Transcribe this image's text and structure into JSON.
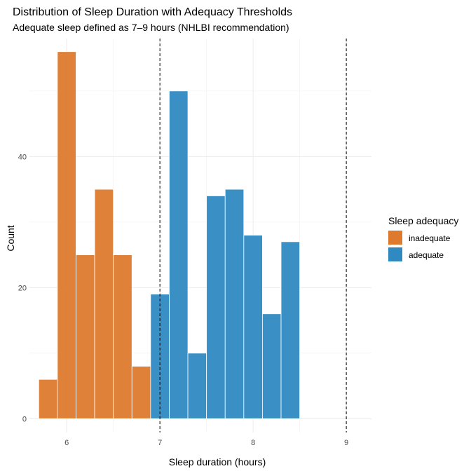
{
  "chart_data": {
    "type": "bar",
    "title": "Distribution of Sleep Duration with Adequacy Thresholds",
    "subtitle": "Adequate sleep defined as 7–9 hours (NHLBI recommendation)",
    "xlabel": "Sleep duration (hours)",
    "ylabel": "Count",
    "xlim": [
      5.6,
      9.27
    ],
    "ylim": [
      -2.1,
      58
    ],
    "x_ticks": [
      6,
      7,
      8,
      9
    ],
    "y_ticks": [
      0,
      20,
      40
    ],
    "grid": true,
    "bin_width": 0.2,
    "reference_lines": [
      7,
      9
    ],
    "legend": {
      "title": "Sleep adequacy",
      "position": "right",
      "entries": [
        {
          "label": "inadequate",
          "color": "#DD7A2D"
        },
        {
          "label": "adequate",
          "color": "#2F8AC2"
        }
      ]
    },
    "bins": [
      {
        "start": 5.7,
        "end": 5.9,
        "count": 6,
        "group": "inadequate"
      },
      {
        "start": 5.9,
        "end": 6.1,
        "count": 56,
        "group": "inadequate"
      },
      {
        "start": 6.1,
        "end": 6.3,
        "count": 25,
        "group": "inadequate"
      },
      {
        "start": 6.3,
        "end": 6.5,
        "count": 35,
        "group": "inadequate"
      },
      {
        "start": 6.5,
        "end": 6.7,
        "count": 25,
        "group": "inadequate"
      },
      {
        "start": 6.7,
        "end": 6.9,
        "count": 8,
        "group": "inadequate"
      },
      {
        "start": 6.9,
        "end": 7.1,
        "count": 19,
        "group": "adequate"
      },
      {
        "start": 7.1,
        "end": 7.3,
        "count": 50,
        "group": "adequate"
      },
      {
        "start": 7.3,
        "end": 7.5,
        "count": 10,
        "group": "adequate"
      },
      {
        "start": 7.5,
        "end": 7.7,
        "count": 34,
        "group": "adequate"
      },
      {
        "start": 7.7,
        "end": 7.9,
        "count": 35,
        "group": "adequate"
      },
      {
        "start": 7.9,
        "end": 8.1,
        "count": 28,
        "group": "adequate"
      },
      {
        "start": 8.1,
        "end": 8.3,
        "count": 16,
        "group": "adequate"
      },
      {
        "start": 8.3,
        "end": 8.5,
        "count": 27,
        "group": "adequate"
      }
    ]
  }
}
